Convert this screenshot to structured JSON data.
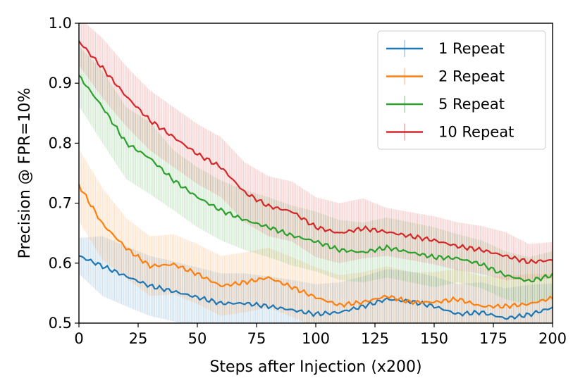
{
  "chart_data": {
    "type": "line",
    "title": "",
    "xlabel": "Steps after Injection (x200)",
    "ylabel": "Precision @ FPR=10%",
    "xlim": [
      0,
      200
    ],
    "ylim": [
      0.5,
      1.0
    ],
    "xticks": [
      0,
      25,
      50,
      75,
      100,
      125,
      150,
      175,
      200
    ],
    "yticks": [
      0.5,
      0.6,
      0.7,
      0.8,
      0.9,
      1.0
    ],
    "xtick_labels": [
      "0",
      "25",
      "50",
      "75",
      "100",
      "125",
      "150",
      "175",
      "200"
    ],
    "ytick_labels": [
      "0.5",
      "0.6",
      "0.7",
      "0.8",
      "0.9",
      "1.0"
    ],
    "grid": false,
    "legend_position": "top-right",
    "error_bars": true,
    "x": [
      0,
      10,
      20,
      30,
      40,
      50,
      60,
      70,
      80,
      90,
      100,
      110,
      120,
      130,
      140,
      150,
      160,
      170,
      180,
      190,
      200
    ],
    "series": [
      {
        "name": "1 Repeat",
        "color": "#1f77b4",
        "values": [
          0.612,
          0.595,
          0.578,
          0.562,
          0.553,
          0.543,
          0.533,
          0.533,
          0.528,
          0.522,
          0.515,
          0.518,
          0.528,
          0.54,
          0.536,
          0.528,
          0.515,
          0.518,
          0.508,
          0.514,
          0.526
        ],
        "error": [
          0.03,
          0.05,
          0.05,
          0.05,
          0.05,
          0.05,
          0.05,
          0.05,
          0.05,
          0.05,
          0.05,
          0.05,
          0.05,
          0.05,
          0.05,
          0.05,
          0.05,
          0.05,
          0.05,
          0.05,
          0.04
        ]
      },
      {
        "name": "2 Repeat",
        "color": "#ff7f0e",
        "values": [
          0.73,
          0.665,
          0.625,
          0.595,
          0.598,
          0.582,
          0.562,
          0.568,
          0.576,
          0.56,
          0.543,
          0.53,
          0.535,
          0.545,
          0.535,
          0.535,
          0.54,
          0.528,
          0.528,
          0.532,
          0.542
        ],
        "error": [
          0.06,
          0.06,
          0.05,
          0.05,
          0.05,
          0.05,
          0.05,
          0.05,
          0.05,
          0.05,
          0.05,
          0.05,
          0.05,
          0.05,
          0.05,
          0.05,
          0.05,
          0.05,
          0.05,
          0.05,
          0.04
        ]
      },
      {
        "name": "5 Repeat",
        "color": "#2ca02c",
        "values": [
          0.912,
          0.86,
          0.8,
          0.775,
          0.738,
          0.71,
          0.688,
          0.672,
          0.66,
          0.646,
          0.636,
          0.622,
          0.618,
          0.626,
          0.618,
          0.61,
          0.608,
          0.598,
          0.58,
          0.57,
          0.58
        ],
        "error": [
          0.05,
          0.06,
          0.06,
          0.06,
          0.05,
          0.05,
          0.05,
          0.05,
          0.05,
          0.05,
          0.05,
          0.05,
          0.05,
          0.05,
          0.05,
          0.05,
          0.04,
          0.04,
          0.04,
          0.04,
          0.04
        ]
      },
      {
        "name": "10 Repeat",
        "color": "#d62728",
        "values": [
          0.97,
          0.925,
          0.878,
          0.838,
          0.81,
          0.782,
          0.76,
          0.718,
          0.695,
          0.686,
          0.66,
          0.65,
          0.658,
          0.652,
          0.645,
          0.638,
          0.628,
          0.622,
          0.612,
          0.602,
          0.605
        ],
        "error": [
          0.04,
          0.05,
          0.05,
          0.05,
          0.05,
          0.05,
          0.05,
          0.05,
          0.05,
          0.05,
          0.05,
          0.05,
          0.05,
          0.04,
          0.04,
          0.04,
          0.04,
          0.04,
          0.04,
          0.03,
          0.03
        ]
      }
    ]
  }
}
